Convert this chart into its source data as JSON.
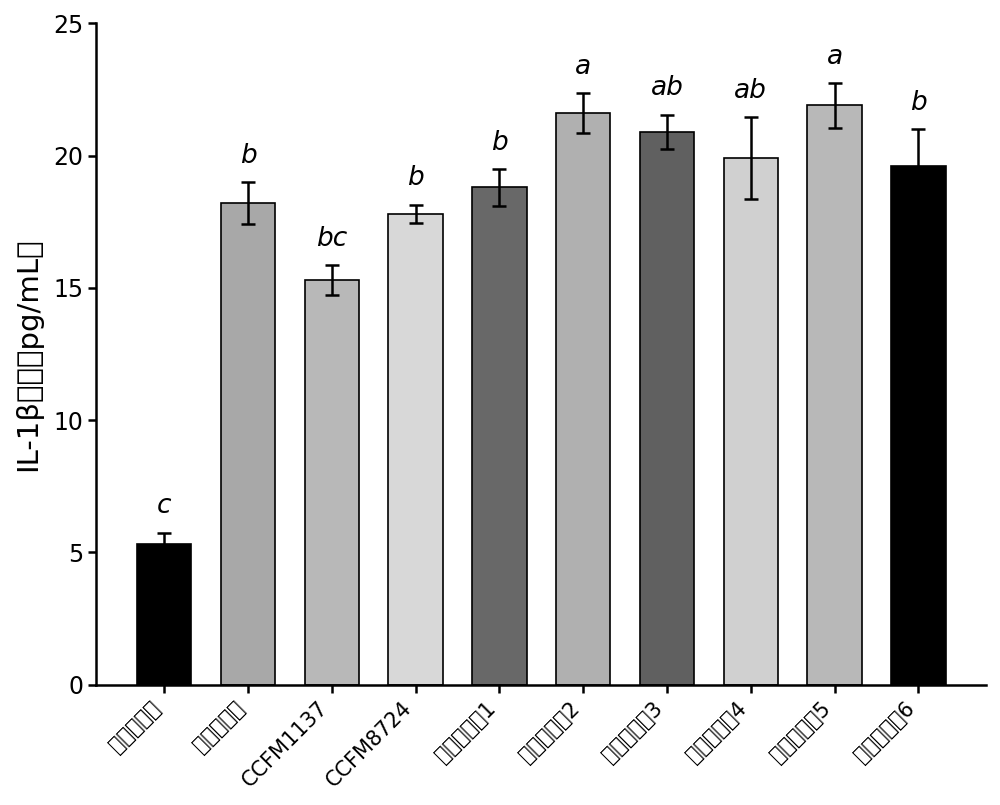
{
  "categories": [
    "空白对照组",
    "阴性对照组",
    "CCFM1137",
    "CCFM8724",
    "植物乳杆菌1",
    "植物乳杆菌2",
    "植物乳杆菌3",
    "植物乳杆菌4",
    "植物乳杆菌5",
    "植物乳杆菌6"
  ],
  "values": [
    5.3,
    18.2,
    15.3,
    17.8,
    18.8,
    21.6,
    20.9,
    19.9,
    21.9,
    19.6
  ],
  "errors": [
    0.45,
    0.8,
    0.55,
    0.35,
    0.7,
    0.75,
    0.65,
    1.55,
    0.85,
    1.4
  ],
  "bar_colors": [
    "#000000",
    "#a8a8a8",
    "#b8b8b8",
    "#d8d8d8",
    "#686868",
    "#b0b0b0",
    "#606060",
    "#d0d0d0",
    "#b8b8b8",
    "#000000"
  ],
  "significance": [
    "c",
    "b",
    "bc",
    "b",
    "b",
    "a",
    "ab",
    "ab",
    "a",
    "b"
  ],
  "ylabel": "IL-1β含量（pg/mL）",
  "ylim": [
    0,
    25
  ],
  "yticks": [
    0,
    5,
    10,
    15,
    20,
    25
  ],
  "sig_fontsize": 19,
  "ylabel_fontsize": 21,
  "tick_fontsize": 17,
  "xlabel_fontsize": 15
}
